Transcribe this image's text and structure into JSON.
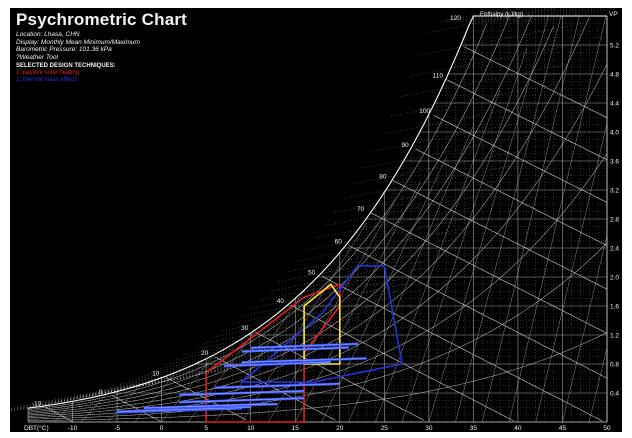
{
  "chart_data": {
    "type": "psychrometric",
    "title": "Psychrometric Chart",
    "info": [
      "Location: Lhasa, CHN",
      "Display: Monthly Mean Minimum/Maximum",
      "Barometric Pressure: 101.36 kPa",
      "?Weather Tool"
    ],
    "techniques_heading": "SELECTED DESIGN TECHNIQUES:",
    "techniques": [
      {
        "label": "1. passive solar heating",
        "color": "#e02020"
      },
      {
        "label": "2. thermal mass effects",
        "color": "#2233dd"
      }
    ],
    "xlabel": "DBT(°C)",
    "x_ticks": [
      -10,
      -5,
      0,
      5,
      10,
      15,
      20,
      25,
      30,
      35,
      40,
      45,
      50
    ],
    "xlim": [
      -15,
      50
    ],
    "y2label": "VP",
    "y2_ticks": [
      0.4,
      0.8,
      1.2,
      1.6,
      2.0,
      2.4,
      2.8,
      3.2,
      3.6,
      4.0,
      4.4,
      4.8,
      5.2
    ],
    "y2lim": [
      0,
      5.6
    ],
    "enthalpy_label": "Enthalpy (kJ/kg)",
    "enthalpy_ticks": [
      -10,
      0,
      10,
      20,
      30,
      40,
      50,
      60,
      70,
      80,
      90,
      100,
      110,
      120
    ],
    "zones": [
      {
        "name": "passive solar heating",
        "color": "#e02020",
        "points": [
          [
            5,
            0.0
          ],
          [
            5,
            0.68
          ],
          [
            16,
            1.72
          ],
          [
            20,
            1.9
          ],
          [
            20,
            1.6
          ],
          [
            16,
            0.95
          ],
          [
            16,
            0.0
          ]
        ]
      },
      {
        "name": "thermal mass effects",
        "color": "#2233dd",
        "points": [
          [
            9,
            0.55
          ],
          [
            18,
            1.5
          ],
          [
            22,
            2.15
          ],
          [
            25,
            2.15
          ],
          [
            27,
            0.8
          ],
          [
            17,
            0.55
          ]
        ]
      },
      {
        "name": "comfort zone",
        "color": "#ffee33",
        "points": [
          [
            16,
            0.8
          ],
          [
            16,
            1.6
          ],
          [
            19,
            1.9
          ],
          [
            20,
            1.72
          ],
          [
            20,
            0.8
          ]
        ]
      }
    ],
    "monthly_lines": [
      {
        "tmin": -5,
        "tmax": 9,
        "vp": 0.16
      },
      {
        "tmin": -3,
        "tmax": 10,
        "vp": 0.18
      },
      {
        "tmin": 0,
        "tmax": 13,
        "vp": 0.22
      },
      {
        "tmin": 2,
        "tmax": 16,
        "vp": 0.3
      },
      {
        "tmin": 6,
        "tmax": 20,
        "vp": 0.5
      },
      {
        "tmin": 9,
        "tmax": 23,
        "vp": 0.85
      },
      {
        "tmin": 10,
        "tmax": 22,
        "vp": 1.05
      },
      {
        "tmin": 9,
        "tmax": 21,
        "vp": 1.0
      },
      {
        "tmin": 7,
        "tmax": 19,
        "vp": 0.8
      },
      {
        "tmin": 2,
        "tmax": 16,
        "vp": 0.4
      },
      {
        "tmin": -2,
        "tmax": 12,
        "vp": 0.22
      },
      {
        "tmin": -5,
        "tmax": 9,
        "vp": 0.17
      }
    ],
    "colors": {
      "background": "#000000",
      "grid": "#d8d8d8",
      "text": "#f2f2f2",
      "monthly_lines": "#3f5bff"
    },
    "grid": true
  }
}
